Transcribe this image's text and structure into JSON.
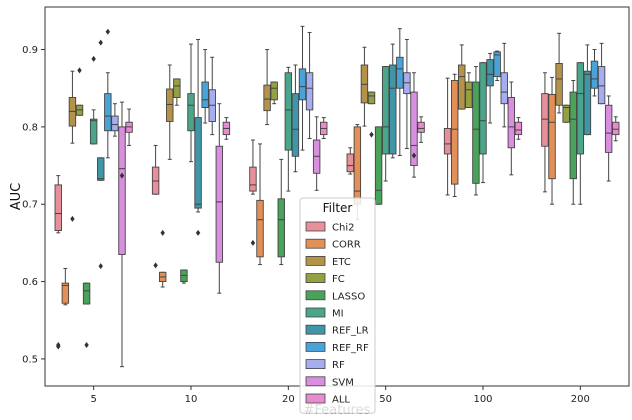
{
  "chart_data": {
    "type": "box",
    "xlabel": "#Features",
    "ylabel": "AUC",
    "ylim": [
      0.465,
      0.955
    ],
    "yticks": [
      0.5,
      0.6,
      0.7,
      0.8,
      0.9
    ],
    "categories": [
      "5",
      "10",
      "20",
      "50",
      "100",
      "200"
    ],
    "legend": {
      "title": "Filter",
      "placement": "center-bottom"
    },
    "series": [
      {
        "name": "Chi2",
        "color": "#e8909a",
        "boxes": [
          {
            "whislo": 0.663,
            "q1": 0.666,
            "med": 0.688,
            "q3": 0.725,
            "whishi": 0.737,
            "fliers": [
              0.518,
              0.516
            ]
          },
          {
            "whislo": 0.713,
            "q1": 0.713,
            "med": 0.73,
            "q3": 0.748,
            "whishi": 0.776,
            "fliers": [
              0.621
            ]
          },
          {
            "whislo": 0.713,
            "q1": 0.717,
            "med": 0.725,
            "q3": 0.748,
            "whishi": 0.783,
            "fliers": [
              0.65
            ]
          },
          {
            "whislo": 0.739,
            "q1": 0.742,
            "med": 0.75,
            "q3": 0.765,
            "whishi": 0.773,
            "fliers": []
          },
          {
            "whislo": 0.712,
            "q1": 0.765,
            "med": 0.778,
            "q3": 0.798,
            "whishi": 0.863,
            "fliers": []
          },
          {
            "whislo": 0.716,
            "q1": 0.775,
            "med": 0.81,
            "q3": 0.843,
            "whishi": 0.87,
            "fliers": []
          }
        ]
      },
      {
        "name": "CORR",
        "color": "#e39058",
        "boxes": [
          {
            "whislo": 0.57,
            "q1": 0.572,
            "med": 0.595,
            "q3": 0.598,
            "whishi": 0.617,
            "fliers": []
          },
          {
            "whislo": 0.593,
            "q1": 0.6,
            "med": 0.606,
            "q3": 0.612,
            "whishi": 0.612,
            "fliers": [
              0.663
            ]
          },
          {
            "whislo": 0.622,
            "q1": 0.632,
            "med": 0.68,
            "q3": 0.705,
            "whishi": 0.778,
            "fliers": []
          },
          {
            "whislo": 0.68,
            "q1": 0.7,
            "med": 0.717,
            "q3": 0.8,
            "whishi": 0.803,
            "fliers": []
          },
          {
            "whislo": 0.71,
            "q1": 0.726,
            "med": 0.797,
            "q3": 0.86,
            "whishi": 0.868,
            "fliers": []
          },
          {
            "whislo": 0.7,
            "q1": 0.733,
            "med": 0.806,
            "q3": 0.842,
            "whishi": 0.864,
            "fliers": []
          }
        ]
      },
      {
        "name": "ETC",
        "color": "#b5924a",
        "boxes": [
          {
            "whislo": 0.779,
            "q1": 0.801,
            "med": 0.82,
            "q3": 0.838,
            "whishi": 0.872,
            "fliers": [
              0.681
            ]
          },
          {
            "whislo": 0.758,
            "q1": 0.807,
            "med": 0.829,
            "q3": 0.849,
            "whishi": 0.88,
            "fliers": []
          },
          {
            "whislo": 0.803,
            "q1": 0.821,
            "med": 0.836,
            "q3": 0.854,
            "whishi": 0.9,
            "fliers": []
          },
          {
            "whislo": 0.801,
            "q1": 0.831,
            "med": 0.855,
            "q3": 0.88,
            "whishi": 0.903,
            "fliers": []
          },
          {
            "whislo": 0.823,
            "q1": 0.823,
            "med": 0.865,
            "q3": 0.88,
            "whishi": 0.906,
            "fliers": []
          },
          {
            "whislo": 0.818,
            "q1": 0.828,
            "med": 0.862,
            "q3": 0.882,
            "whishi": 0.921,
            "fliers": []
          }
        ]
      },
      {
        "name": "FC",
        "color": "#95a045",
        "boxes": [
          {
            "whislo": 0.815,
            "q1": 0.815,
            "med": 0.822,
            "q3": 0.828,
            "whishi": 0.828,
            "fliers": [
              0.873
            ]
          },
          {
            "whislo": 0.828,
            "q1": 0.838,
            "med": 0.853,
            "q3": 0.862,
            "whishi": 0.862,
            "fliers": []
          },
          {
            "whislo": 0.83,
            "q1": 0.835,
            "med": 0.85,
            "q3": 0.858,
            "whishi": 0.858,
            "fliers": []
          },
          {
            "whislo": 0.83,
            "q1": 0.83,
            "med": 0.84,
            "q3": 0.845,
            "whishi": 0.845,
            "fliers": [
              0.79
            ]
          },
          {
            "whislo": 0.825,
            "q1": 0.825,
            "med": 0.848,
            "q3": 0.858,
            "whishi": 0.87,
            "fliers": []
          },
          {
            "whislo": 0.806,
            "q1": 0.806,
            "med": 0.825,
            "q3": 0.828,
            "whishi": 0.828,
            "fliers": []
          }
        ]
      },
      {
        "name": "LASSO",
        "color": "#4aa35a",
        "boxes": [
          {
            "whislo": 0.571,
            "q1": 0.571,
            "med": 0.588,
            "q3": 0.598,
            "whishi": 0.598,
            "fliers": [
              0.518
            ]
          },
          {
            "whislo": 0.598,
            "q1": 0.6,
            "med": 0.608,
            "q3": 0.615,
            "whishi": 0.615,
            "fliers": []
          },
          {
            "whislo": 0.622,
            "q1": 0.632,
            "med": 0.68,
            "q3": 0.707,
            "whishi": 0.758,
            "fliers": []
          },
          {
            "whislo": 0.7,
            "q1": 0.7,
            "med": 0.718,
            "q3": 0.8,
            "whishi": 0.8,
            "fliers": []
          },
          {
            "whislo": 0.712,
            "q1": 0.727,
            "med": 0.797,
            "q3": 0.858,
            "whishi": 0.878,
            "fliers": []
          },
          {
            "whislo": 0.7,
            "q1": 0.733,
            "med": 0.81,
            "q3": 0.845,
            "whishi": 0.86,
            "fliers": []
          }
        ]
      },
      {
        "name": "MI",
        "color": "#4aa58a",
        "boxes": [
          {
            "whislo": 0.778,
            "q1": 0.778,
            "med": 0.808,
            "q3": 0.81,
            "whishi": 0.822,
            "fliers": [
              0.888
            ]
          },
          {
            "whislo": 0.755,
            "q1": 0.795,
            "med": 0.828,
            "q3": 0.843,
            "whishi": 0.907,
            "fliers": []
          },
          {
            "whislo": 0.717,
            "q1": 0.77,
            "med": 0.822,
            "q3": 0.87,
            "whishi": 0.877,
            "fliers": []
          },
          {
            "whislo": 0.73,
            "q1": 0.765,
            "med": 0.8,
            "q3": 0.878,
            "whishi": 0.878,
            "fliers": []
          },
          {
            "whislo": 0.728,
            "q1": 0.765,
            "med": 0.808,
            "q3": 0.883,
            "whishi": 0.883,
            "fliers": []
          },
          {
            "whislo": 0.7,
            "q1": 0.765,
            "med": 0.843,
            "q3": 0.883,
            "whishi": 0.883,
            "fliers": []
          }
        ]
      },
      {
        "name": "REF_LR",
        "color": "#3f96a8",
        "boxes": [
          {
            "whislo": 0.731,
            "q1": 0.731,
            "med": 0.733,
            "q3": 0.76,
            "whishi": 0.76,
            "fliers": [
              0.62,
              0.909
            ]
          },
          {
            "whislo": 0.69,
            "q1": 0.695,
            "med": 0.7,
            "q3": 0.812,
            "whishi": 0.913,
            "fliers": [
              0.663
            ]
          },
          {
            "whislo": 0.742,
            "q1": 0.762,
            "med": 0.797,
            "q3": 0.843,
            "whishi": 0.88,
            "fliers": []
          },
          {
            "whislo": 0.76,
            "q1": 0.765,
            "med": 0.85,
            "q3": 0.88,
            "whishi": 0.907,
            "fliers": []
          },
          {
            "whislo": 0.805,
            "q1": 0.853,
            "med": 0.868,
            "q3": 0.887,
            "whishi": 0.895,
            "fliers": []
          },
          {
            "whislo": 0.79,
            "q1": 0.79,
            "med": 0.868,
            "q3": 0.872,
            "whishi": 0.906,
            "fliers": []
          }
        ]
      },
      {
        "name": "REF_RF",
        "color": "#4aa3d8",
        "boxes": [
          {
            "whislo": 0.76,
            "q1": 0.795,
            "med": 0.814,
            "q3": 0.843,
            "whishi": 0.87,
            "fliers": [
              0.923
            ]
          },
          {
            "whislo": 0.805,
            "q1": 0.825,
            "med": 0.835,
            "q3": 0.858,
            "whishi": 0.9,
            "fliers": []
          },
          {
            "whislo": 0.77,
            "q1": 0.835,
            "med": 0.852,
            "q3": 0.875,
            "whishi": 0.93,
            "fliers": []
          },
          {
            "whislo": 0.763,
            "q1": 0.85,
            "med": 0.875,
            "q3": 0.89,
            "whishi": 0.927,
            "fliers": []
          },
          {
            "whislo": 0.86,
            "q1": 0.865,
            "med": 0.893,
            "q3": 0.897,
            "whishi": 0.898,
            "fliers": []
          },
          {
            "whislo": 0.84,
            "q1": 0.85,
            "med": 0.862,
            "q3": 0.885,
            "whishi": 0.9,
            "fliers": []
          }
        ]
      },
      {
        "name": "RF",
        "color": "#a6aef0",
        "boxes": [
          {
            "whislo": 0.788,
            "q1": 0.795,
            "med": 0.803,
            "q3": 0.814,
            "whishi": 0.83,
            "fliers": []
          },
          {
            "whislo": 0.79,
            "q1": 0.807,
            "med": 0.828,
            "q3": 0.848,
            "whishi": 0.89,
            "fliers": []
          },
          {
            "whislo": 0.785,
            "q1": 0.822,
            "med": 0.85,
            "q3": 0.87,
            "whishi": 0.922,
            "fliers": []
          },
          {
            "whislo": 0.772,
            "q1": 0.843,
            "med": 0.857,
            "q3": 0.87,
            "whishi": 0.913,
            "fliers": []
          },
          {
            "whislo": 0.8,
            "q1": 0.83,
            "med": 0.845,
            "q3": 0.87,
            "whishi": 0.908,
            "fliers": []
          },
          {
            "whislo": 0.83,
            "q1": 0.83,
            "med": 0.853,
            "q3": 0.878,
            "whishi": 0.908,
            "fliers": []
          }
        ]
      },
      {
        "name": "SVM",
        "color": "#d98ee0",
        "boxes": [
          {
            "whislo": 0.49,
            "q1": 0.635,
            "med": 0.746,
            "q3": 0.8,
            "whishi": 0.832,
            "fliers": [
              0.737
            ]
          },
          {
            "whislo": 0.585,
            "q1": 0.625,
            "med": 0.703,
            "q3": 0.775,
            "whishi": 0.83,
            "fliers": []
          },
          {
            "whislo": 0.718,
            "q1": 0.74,
            "med": 0.762,
            "q3": 0.783,
            "whishi": 0.813,
            "fliers": []
          },
          {
            "whislo": 0.735,
            "q1": 0.75,
            "med": 0.776,
            "q3": 0.845,
            "whishi": 0.87,
            "fliers": [
              0.763
            ]
          },
          {
            "whislo": 0.738,
            "q1": 0.773,
            "med": 0.8,
            "q3": 0.838,
            "whishi": 0.858,
            "fliers": []
          },
          {
            "whislo": 0.73,
            "q1": 0.767,
            "med": 0.792,
            "q3": 0.828,
            "whishi": 0.84,
            "fliers": []
          }
        ]
      },
      {
        "name": "ALL",
        "color": "#e88cd0",
        "boxes": [
          {
            "whislo": 0.776,
            "q1": 0.793,
            "med": 0.8,
            "q3": 0.806,
            "whishi": 0.823,
            "fliers": []
          },
          {
            "whislo": 0.784,
            "q1": 0.79,
            "med": 0.798,
            "q3": 0.806,
            "whishi": 0.812,
            "fliers": []
          },
          {
            "whislo": 0.785,
            "q1": 0.79,
            "med": 0.798,
            "q3": 0.806,
            "whishi": 0.812,
            "fliers": []
          },
          {
            "whislo": 0.78,
            "q1": 0.793,
            "med": 0.798,
            "q3": 0.806,
            "whishi": 0.813,
            "fliers": []
          },
          {
            "whislo": 0.784,
            "q1": 0.79,
            "med": 0.796,
            "q3": 0.806,
            "whishi": 0.812,
            "fliers": []
          },
          {
            "whislo": 0.782,
            "q1": 0.79,
            "med": 0.797,
            "q3": 0.806,
            "whishi": 0.813,
            "fliers": []
          }
        ]
      }
    ]
  }
}
